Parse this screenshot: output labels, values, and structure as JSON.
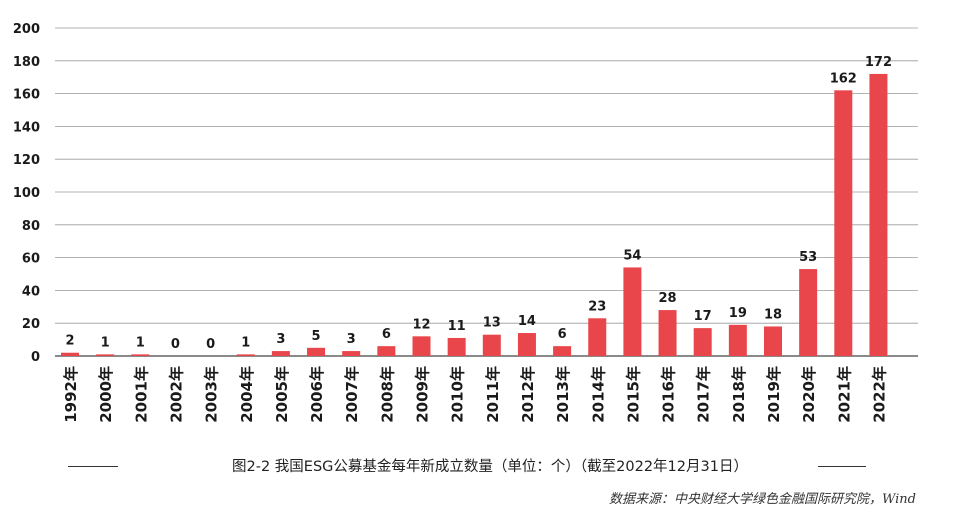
{
  "chart_data": {
    "type": "bar",
    "categories": [
      "1992年",
      "2000年",
      "2001年",
      "2002年",
      "2003年",
      "2004年",
      "2005年",
      "2006年",
      "2007年",
      "2008年",
      "2009年",
      "2010年",
      "2011年",
      "2012年",
      "2013年",
      "2014年",
      "2015年",
      "2016年",
      "2017年",
      "2018年",
      "2019年",
      "2020年",
      "2021年",
      "2022年"
    ],
    "values": [
      2,
      1,
      1,
      0,
      0,
      1,
      3,
      5,
      3,
      6,
      12,
      11,
      13,
      14,
      6,
      23,
      54,
      28,
      17,
      19,
      18,
      53,
      162,
      172
    ],
    "ylim": [
      0,
      200
    ],
    "yticks": [
      0,
      20,
      40,
      60,
      80,
      100,
      120,
      140,
      160,
      180,
      200
    ],
    "grid": true,
    "bar_color": "#e8464a",
    "title": "图2-2 我国ESG公募基金每年新成立数量（单位：个）（截至2022年12月31日）",
    "xlabel": "",
    "ylabel": ""
  },
  "caption": "图2-2 我国ESG公募基金每年新成立数量（单位：个）（截至2022年12月31日）",
  "source": "数据来源：中央财经大学绿色金融国际研究院，Wind"
}
